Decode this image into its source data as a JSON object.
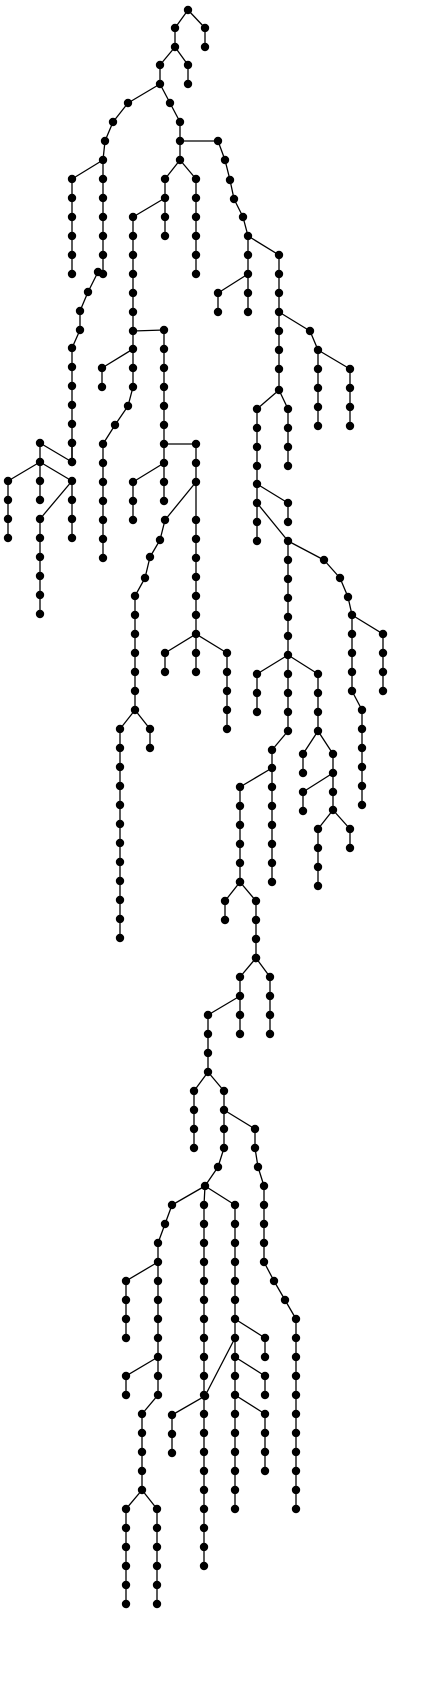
{
  "diagram": {
    "type": "rooted-tree",
    "root": "n0",
    "node_color": "#000000",
    "edge_color": "#000000",
    "background": "#ffffff",
    "node_count": 343
  }
}
